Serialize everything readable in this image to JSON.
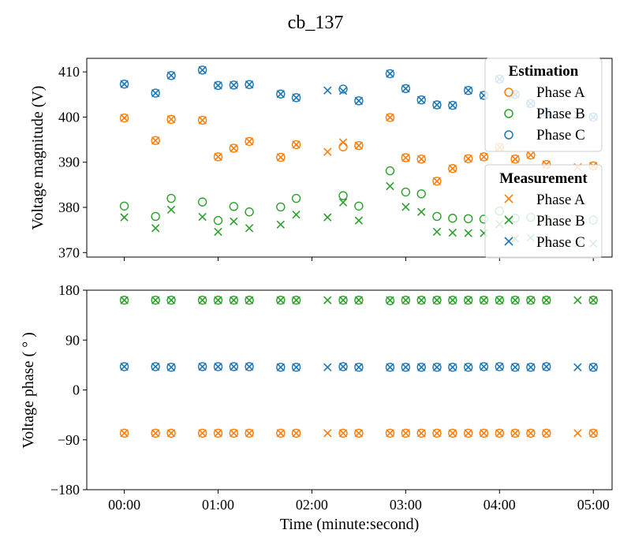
{
  "title": "cb_137",
  "colors": {
    "A": "#ff7f0e",
    "B": "#2ca02c",
    "C": "#1f77b4"
  },
  "chart_data": [
    {
      "type": "scatter",
      "ylabel": "Voltage magnitude (V)",
      "ylim": [
        369,
        413
      ],
      "yticks": [
        "370",
        "380",
        "390",
        "400",
        "410"
      ],
      "xlim": [
        -0.4,
        5.2
      ],
      "x_minutes": [
        0,
        0.333,
        0.5,
        0.833,
        1,
        1.167,
        1.333,
        1.667,
        1.833,
        2.167,
        2.333,
        2.5,
        2.833,
        3,
        3.167,
        3.333,
        3.5,
        3.667,
        3.833,
        4,
        4.167,
        4.333,
        4.5,
        4.833,
        5
      ],
      "legend_placement": "top-right, two boxes",
      "legend_estimation": {
        "title": "Estimation",
        "entries": [
          "Phase A",
          "Phase B",
          "Phase C"
        ]
      },
      "legend_measurement": {
        "title": "Measurement",
        "entries": [
          "Phase A",
          "Phase B",
          "Phase C"
        ]
      },
      "series": [
        {
          "name": "Phase A",
          "group": "Estimation",
          "marker": "circle",
          "color": "A",
          "values": [
            399.8,
            394.8,
            399.5,
            399.3,
            391.2,
            393.1,
            394.6,
            391.1,
            393.9,
            null,
            393.4,
            393.7,
            399.9,
            391.0,
            390.7,
            385.8,
            388.6,
            390.8,
            391.2,
            393.3,
            390.7,
            391.6,
            389.5,
            null,
            389.2
          ]
        },
        {
          "name": "Phase A",
          "group": "Measurement",
          "marker": "x",
          "color": "A",
          "values": [
            399.8,
            394.8,
            399.5,
            399.3,
            391.2,
            393.1,
            394.6,
            391.1,
            393.9,
            392.3,
            394.4,
            393.7,
            399.9,
            391.0,
            390.7,
            385.8,
            388.6,
            390.8,
            391.2,
            393.3,
            390.7,
            391.6,
            389.5,
            388.9,
            389.2
          ]
        },
        {
          "name": "Phase B",
          "group": "Estimation",
          "marker": "circle",
          "color": "B",
          "values": [
            380.3,
            378.0,
            382.0,
            381.2,
            377.1,
            380.2,
            379.0,
            380.1,
            382.0,
            null,
            382.6,
            380.3,
            388.1,
            383.4,
            383.0,
            378.0,
            377.6,
            377.5,
            377.4,
            379.2,
            377.6,
            377.8,
            377.4,
            null,
            377.2
          ]
        },
        {
          "name": "Phase B",
          "group": "Measurement",
          "marker": "x",
          "color": "B",
          "values": [
            377.8,
            375.4,
            379.5,
            377.9,
            374.6,
            376.9,
            375.4,
            376.2,
            378.4,
            377.8,
            381.1,
            377.1,
            384.7,
            380.1,
            379.0,
            374.6,
            374.4,
            374.3,
            374.3,
            376.3,
            373.1,
            373.3,
            372.5,
            372.0,
            372.0
          ]
        },
        {
          "name": "Phase C",
          "group": "Estimation",
          "marker": "circle",
          "color": "C",
          "values": [
            407.3,
            405.3,
            409.2,
            410.4,
            407.0,
            407.1,
            407.2,
            405.1,
            404.3,
            null,
            406.2,
            403.6,
            409.6,
            406.3,
            403.8,
            402.7,
            402.6,
            405.9,
            404.8,
            408.4,
            405.0,
            403.0,
            401.0,
            null,
            400.0
          ]
        },
        {
          "name": "Phase C",
          "group": "Measurement",
          "marker": "x",
          "color": "C",
          "values": [
            407.3,
            405.3,
            409.2,
            410.4,
            407.0,
            407.1,
            407.2,
            405.1,
            404.3,
            405.9,
            405.8,
            403.6,
            409.6,
            406.3,
            403.8,
            402.7,
            402.6,
            405.9,
            404.8,
            408.4,
            405.0,
            403.0,
            401.0,
            400.5,
            400.0
          ]
        }
      ]
    },
    {
      "type": "scatter",
      "ylabel": "Voltage phase ( ° )",
      "xlabel": "Time (minute:second)",
      "ylim": [
        -180,
        180
      ],
      "yticks": [
        "−180",
        "−90",
        "0",
        "90",
        "180"
      ],
      "xlim": [
        -0.4,
        5.2
      ],
      "xticks": [
        "00:00",
        "01:00",
        "02:00",
        "03:00",
        "04:00",
        "05:00"
      ],
      "x_minutes": [
        0,
        0.333,
        0.5,
        0.833,
        1,
        1.167,
        1.333,
        1.667,
        1.833,
        2.167,
        2.333,
        2.5,
        2.833,
        3,
        3.167,
        3.333,
        3.5,
        3.667,
        3.833,
        4,
        4.167,
        4.333,
        4.5,
        4.833,
        5
      ],
      "series": [
        {
          "name": "Phase A",
          "group": "Estimation",
          "marker": "circle",
          "color": "A",
          "values": [
            -78,
            -78,
            -78,
            -78,
            -78,
            -78,
            -78,
            -78,
            -78,
            null,
            -78,
            -78,
            -78,
            -78,
            -78,
            -78,
            -78,
            -78,
            -78,
            -78,
            -78,
            -78,
            -78,
            null,
            -78
          ]
        },
        {
          "name": "Phase A",
          "group": "Measurement",
          "marker": "x",
          "color": "A",
          "values": [
            -78,
            -78,
            -78,
            -78,
            -78,
            -78,
            -78,
            -78,
            -78,
            -78,
            -78,
            -78,
            -78,
            -78,
            -78,
            -78,
            -78,
            -78,
            -78,
            -78,
            -78,
            -78,
            -78,
            -78,
            -78
          ]
        },
        {
          "name": "Phase B",
          "group": "Estimation",
          "marker": "circle",
          "color": "B",
          "values": [
            162,
            162,
            162,
            162,
            162,
            162,
            162,
            162,
            162,
            null,
            162,
            162,
            161,
            162,
            162,
            162,
            162,
            162,
            162,
            162,
            162,
            162,
            162,
            null,
            162
          ]
        },
        {
          "name": "Phase B",
          "group": "Measurement",
          "marker": "x",
          "color": "B",
          "values": [
            162,
            162,
            162,
            162,
            162,
            162,
            162,
            162,
            162,
            162,
            162,
            162,
            162,
            162,
            162,
            162,
            162,
            162,
            162,
            162,
            162,
            162,
            162,
            162,
            162
          ]
        },
        {
          "name": "Phase C",
          "group": "Estimation",
          "marker": "circle",
          "color": "C",
          "values": [
            42,
            42,
            41,
            42,
            42,
            42,
            42,
            41,
            41,
            null,
            42,
            41,
            41,
            41,
            41,
            41,
            41,
            41,
            42,
            42,
            41,
            41,
            42,
            null,
            41
          ]
        },
        {
          "name": "Phase C",
          "group": "Measurement",
          "marker": "x",
          "color": "C",
          "values": [
            42,
            42,
            41,
            42,
            42,
            42,
            42,
            41,
            41,
            41,
            42,
            41,
            41,
            41,
            41,
            41,
            41,
            41,
            42,
            42,
            41,
            41,
            42,
            41,
            41
          ]
        }
      ]
    }
  ]
}
